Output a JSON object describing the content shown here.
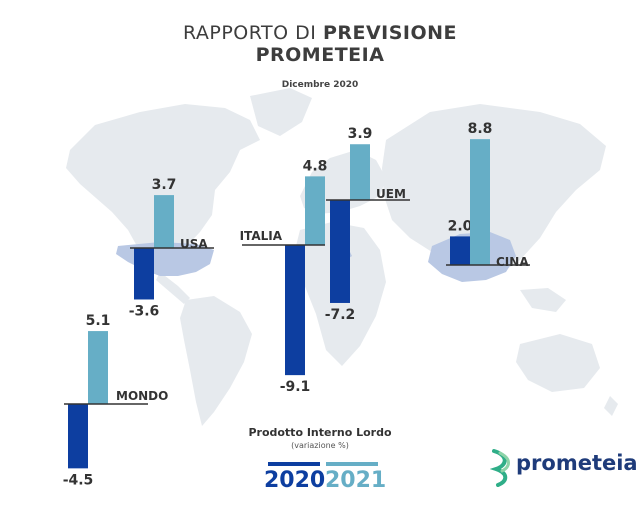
{
  "title_line1_light": "RAPPORTO DI",
  "title_line1_bold": "PREVISIONE",
  "title_line2": "PROMETEIA",
  "subtitle": "Dicembre 2020",
  "legend": {
    "title": "Prodotto Interno Lordo",
    "subtitle": "(variazione %)",
    "year1": "2020",
    "year2": "2021"
  },
  "logo_text": "prometeia",
  "colors": {
    "year2020": "#0d3ea0",
    "year2021": "#66aec6",
    "map": "#e6eaee",
    "highlight": "#b9c8e4"
  },
  "chart_data": {
    "type": "bar",
    "series_names": [
      "2020",
      "2021"
    ],
    "groups": [
      {
        "name": "MONDO",
        "values": [
          -4.5,
          5.1
        ],
        "labels": [
          "-4.5",
          "5.1"
        ]
      },
      {
        "name": "USA",
        "values": [
          -3.6,
          3.7
        ],
        "labels": [
          "-3.6",
          "3.7"
        ]
      },
      {
        "name": "ITALIA",
        "values": [
          -9.1,
          4.8
        ],
        "labels": [
          "-9.1",
          "4.8"
        ]
      },
      {
        "name": "UEM",
        "values": [
          -7.2,
          3.9
        ],
        "labels": [
          "-7.2",
          "3.9"
        ]
      },
      {
        "name": "CINA",
        "values": [
          2.0,
          8.8
        ],
        "labels": [
          "2.0",
          "8.8"
        ]
      }
    ]
  }
}
